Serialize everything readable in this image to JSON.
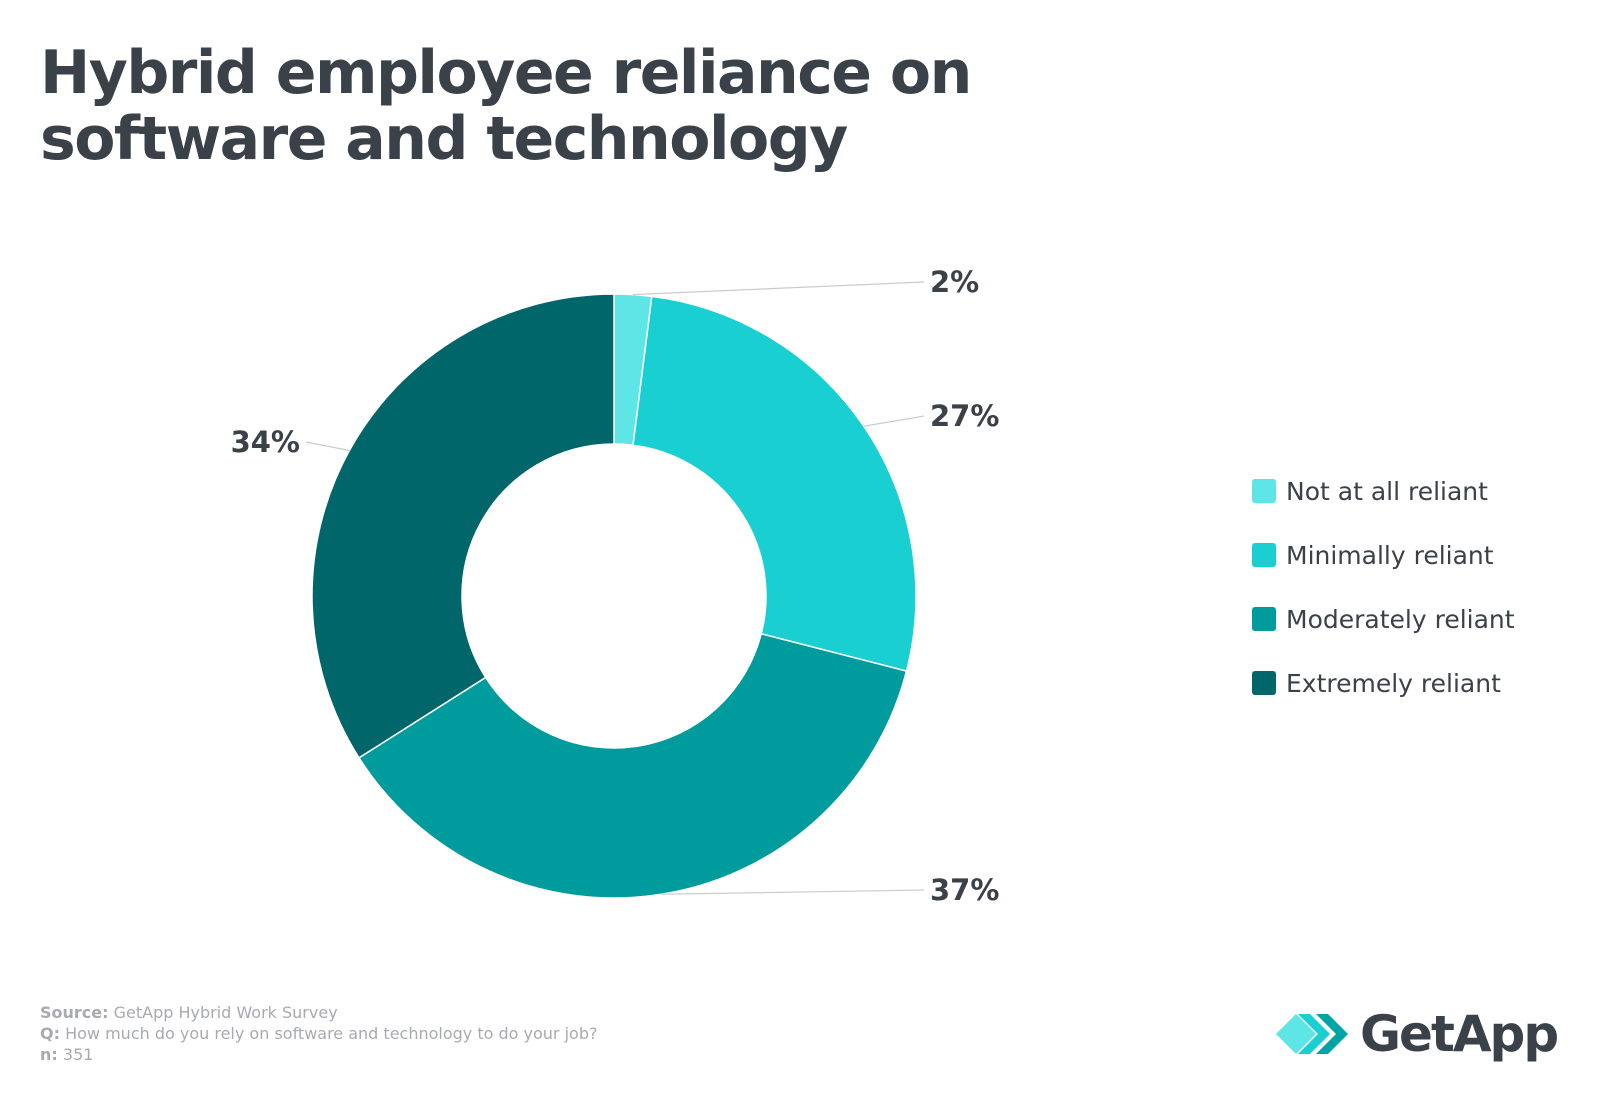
{
  "title": {
    "line1": "Hybrid employee reliance on",
    "line2": "software and technology"
  },
  "chart_data": {
    "type": "pie",
    "subtype": "donut",
    "title": "Hybrid employee reliance on software and technology",
    "categories": [
      "Not at all reliant",
      "Minimally reliant",
      "Moderately reliant",
      "Extremely reliant"
    ],
    "values": [
      2,
      27,
      37,
      34
    ],
    "labels": [
      "2%",
      "27%",
      "37%",
      "34%"
    ],
    "colors": [
      "#5ee6e6",
      "#19cfd2",
      "#009b9c",
      "#00666a"
    ],
    "legend_position": "right"
  },
  "footer": {
    "source_label": "Source:",
    "source_text": "GetApp Hybrid Work Survey",
    "q_label": "Q:",
    "q_text": "How much do you rely on software and technology to do your job?",
    "n_label": "n:",
    "n_text": "351"
  },
  "logo": {
    "text": "GetApp",
    "colors": [
      "#5ee6e6",
      "#19cfd2",
      "#00a3a6"
    ]
  }
}
